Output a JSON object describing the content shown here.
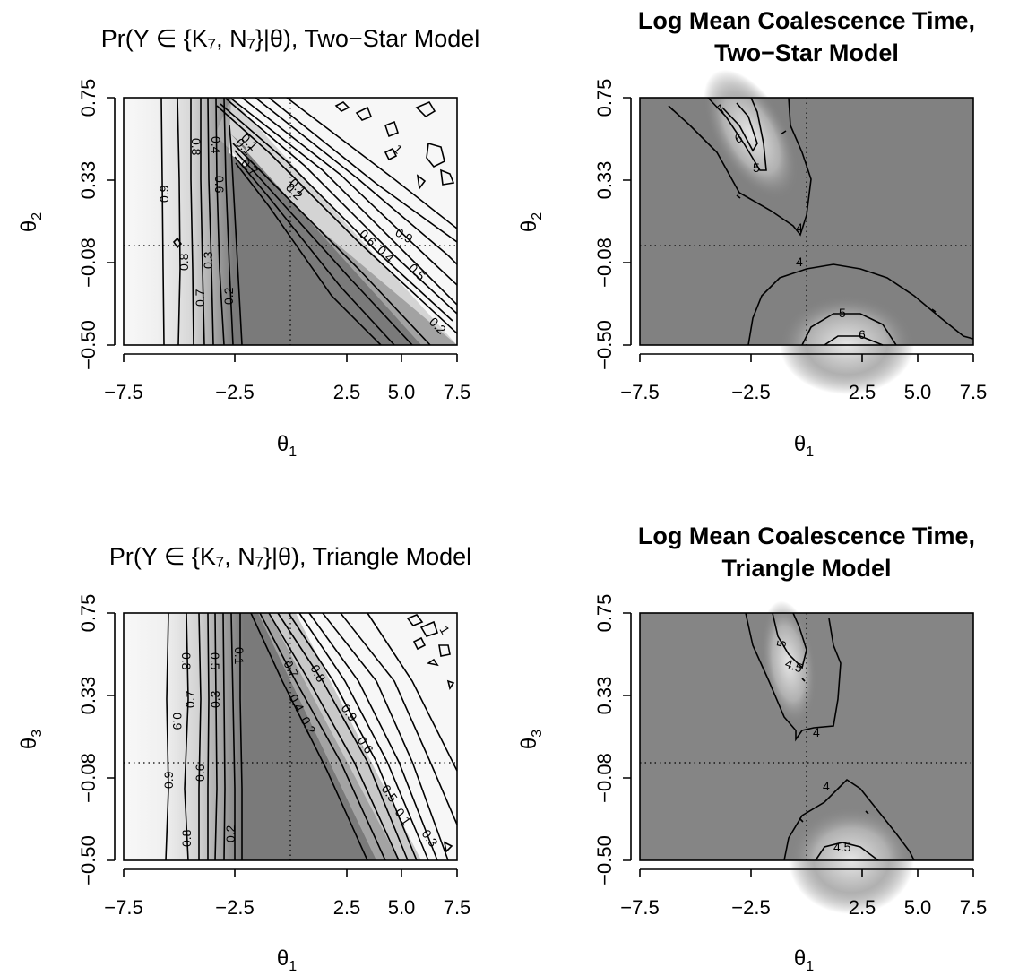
{
  "panels": [
    {
      "title": "Pr(Y ∈ {K₇, N₇}|θ), Two−Star Model",
      "title_bold": false,
      "xlabel": "θ",
      "xlabel_sub": "1",
      "ylabel": "θ",
      "ylabel_sub": "2",
      "xticks": [
        "−7.5",
        "−2.5",
        "2.5",
        "5.0",
        "7.5"
      ],
      "yticks": [
        "−0.50",
        "−0.08",
        "0.33",
        "0.75"
      ],
      "contour_labels": [
        "0.8",
        "0.4",
        "0.6",
        "0.1",
        "0.7",
        "0.2",
        "0.9",
        "0.8",
        "0.7",
        "0.3",
        "0.2",
        "0.6",
        "0.4",
        "0.5",
        "0.9",
        "0.2",
        "0.1",
        "0.1",
        "1"
      ],
      "style": "probability"
    },
    {
      "title": "Log Mean Coalescence Time,",
      "title2": "Two−Star Model",
      "title_bold": true,
      "xlabel": "θ",
      "xlabel_sub": "1",
      "ylabel": "θ",
      "ylabel_sub": "2",
      "xticks": [
        "−7.5",
        "−2.5",
        "2.5",
        "5.0",
        "7.5"
      ],
      "yticks": [
        "−0.50",
        "−0.08",
        "0.33",
        "0.75"
      ],
      "contour_labels": [
        "7",
        "6",
        "5",
        "4",
        "4",
        "5",
        "6"
      ],
      "style": "logtime"
    },
    {
      "title": "Pr(Y ∈ {K₇, N₇}|θ), Triangle Model",
      "title_bold": false,
      "xlabel": "θ",
      "xlabel_sub": "1",
      "ylabel": "θ",
      "ylabel_sub": "3",
      "xticks": [
        "−7.5",
        "−2.5",
        "2.5",
        "5.0",
        "7.5"
      ],
      "yticks": [
        "−0.50",
        "−0.08",
        "0.33",
        "0.75"
      ],
      "contour_labels": [
        "0.8",
        "0.5",
        "0.1",
        "0.7",
        "0.3",
        "0.9",
        "0.7",
        "0.8",
        "0.4",
        "0.2",
        "0.9",
        "0.6",
        "0.5",
        "0.1",
        "0.3",
        "0.6",
        "0.2",
        "0.9",
        "0.8",
        "1"
      ],
      "style": "probability"
    },
    {
      "title": "Log Mean Coalescence Time,",
      "title2": "Triangle Model",
      "title_bold": true,
      "xlabel": "θ",
      "xlabel_sub": "1",
      "ylabel": "θ",
      "ylabel_sub": "3",
      "xticks": [
        "−7.5",
        "−2.5",
        "2.5",
        "5.0",
        "7.5"
      ],
      "yticks": [
        "−0.50",
        "−0.08",
        "0.33",
        "0.75"
      ],
      "contour_labels": [
        "5",
        "4.5",
        "4",
        "4",
        "4.5"
      ],
      "style": "logtime"
    }
  ],
  "chart_data": [
    {
      "type": "heatmap",
      "title": "Pr(Y ∈ {K₇, N₇}|θ), Two−Star Model",
      "xlabel": "θ₁",
      "ylabel": "θ₂",
      "xlim": [
        -7.5,
        7.5
      ],
      "ylim": [
        -0.5,
        0.75
      ],
      "xticks": [
        -7.5,
        -2.5,
        2.5,
        5.0,
        7.5
      ],
      "yticks": [
        -0.5,
        -0.08,
        0.33,
        0.75
      ],
      "reference_lines": {
        "x": 0,
        "y": 0
      },
      "contour_levels": [
        0.1,
        0.2,
        0.3,
        0.4,
        0.5,
        0.6,
        0.7,
        0.8,
        0.9,
        1
      ]
    },
    {
      "type": "heatmap",
      "title": "Log Mean Coalescence Time, Two−Star Model",
      "xlabel": "θ₁",
      "ylabel": "θ₂",
      "xlim": [
        -7.5,
        7.5
      ],
      "ylim": [
        -0.5,
        0.75
      ],
      "xticks": [
        -7.5,
        -2.5,
        2.5,
        5.0,
        7.5
      ],
      "yticks": [
        -0.5,
        -0.08,
        0.33,
        0.75
      ],
      "reference_lines": {
        "x": 0,
        "y": 0
      },
      "contour_levels": [
        4,
        5,
        6,
        7
      ]
    },
    {
      "type": "heatmap",
      "title": "Pr(Y ∈ {K₇, N₇}|θ), Triangle Model",
      "xlabel": "θ₁",
      "ylabel": "θ₃",
      "xlim": [
        -7.5,
        7.5
      ],
      "ylim": [
        -0.5,
        0.75
      ],
      "xticks": [
        -7.5,
        -2.5,
        2.5,
        5.0,
        7.5
      ],
      "yticks": [
        -0.5,
        -0.08,
        0.33,
        0.75
      ],
      "reference_lines": {
        "x": 0,
        "y": 0
      },
      "contour_levels": [
        0.1,
        0.2,
        0.3,
        0.4,
        0.5,
        0.6,
        0.7,
        0.8,
        0.9,
        1
      ]
    },
    {
      "type": "heatmap",
      "title": "Log Mean Coalescence Time, Triangle Model",
      "xlabel": "θ₁",
      "ylabel": "θ₃",
      "xlim": [
        -7.5,
        7.5
      ],
      "ylim": [
        -0.5,
        0.75
      ],
      "xticks": [
        -7.5,
        -2.5,
        2.5,
        5.0,
        7.5
      ],
      "yticks": [
        -0.5,
        -0.08,
        0.33,
        0.75
      ],
      "reference_lines": {
        "x": 0,
        "y": 0
      },
      "contour_levels": [
        4,
        4.5,
        5
      ]
    }
  ]
}
